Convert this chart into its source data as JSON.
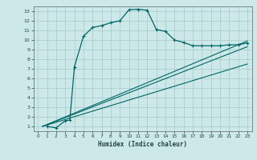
{
  "title": "",
  "xlabel": "Humidex (Indice chaleur)",
  "bg_color": "#cce8e8",
  "grid_color": "#aacece",
  "line_color": "#006666",
  "xlim": [
    -0.5,
    23.5
  ],
  "ylim": [
    0.5,
    13.5
  ],
  "xticks": [
    0,
    1,
    2,
    3,
    4,
    5,
    6,
    7,
    8,
    9,
    10,
    11,
    12,
    13,
    14,
    15,
    16,
    17,
    18,
    19,
    20,
    21,
    22,
    23
  ],
  "yticks": [
    1,
    2,
    3,
    4,
    5,
    6,
    7,
    8,
    9,
    10,
    11,
    12,
    13
  ],
  "curve_x": [
    1,
    2,
    3,
    3.5,
    4,
    5,
    6,
    7,
    8,
    9,
    10,
    11,
    12,
    13,
    14,
    15,
    16,
    17,
    18,
    19,
    20,
    21,
    22,
    23
  ],
  "curve_y": [
    1.0,
    0.85,
    1.6,
    1.65,
    7.2,
    10.4,
    11.3,
    11.5,
    11.8,
    12.0,
    13.15,
    13.2,
    13.1,
    11.1,
    10.9,
    10.0,
    9.75,
    9.4,
    9.4,
    9.4,
    9.4,
    9.5,
    9.5,
    9.7
  ],
  "line1_x": [
    0.5,
    23
  ],
  "line1_y": [
    1.0,
    7.5
  ],
  "line2_x": [
    0.5,
    23
  ],
  "line2_y": [
    1.0,
    9.3
  ],
  "line3_x": [
    0.5,
    23
  ],
  "line3_y": [
    1.0,
    9.9
  ]
}
